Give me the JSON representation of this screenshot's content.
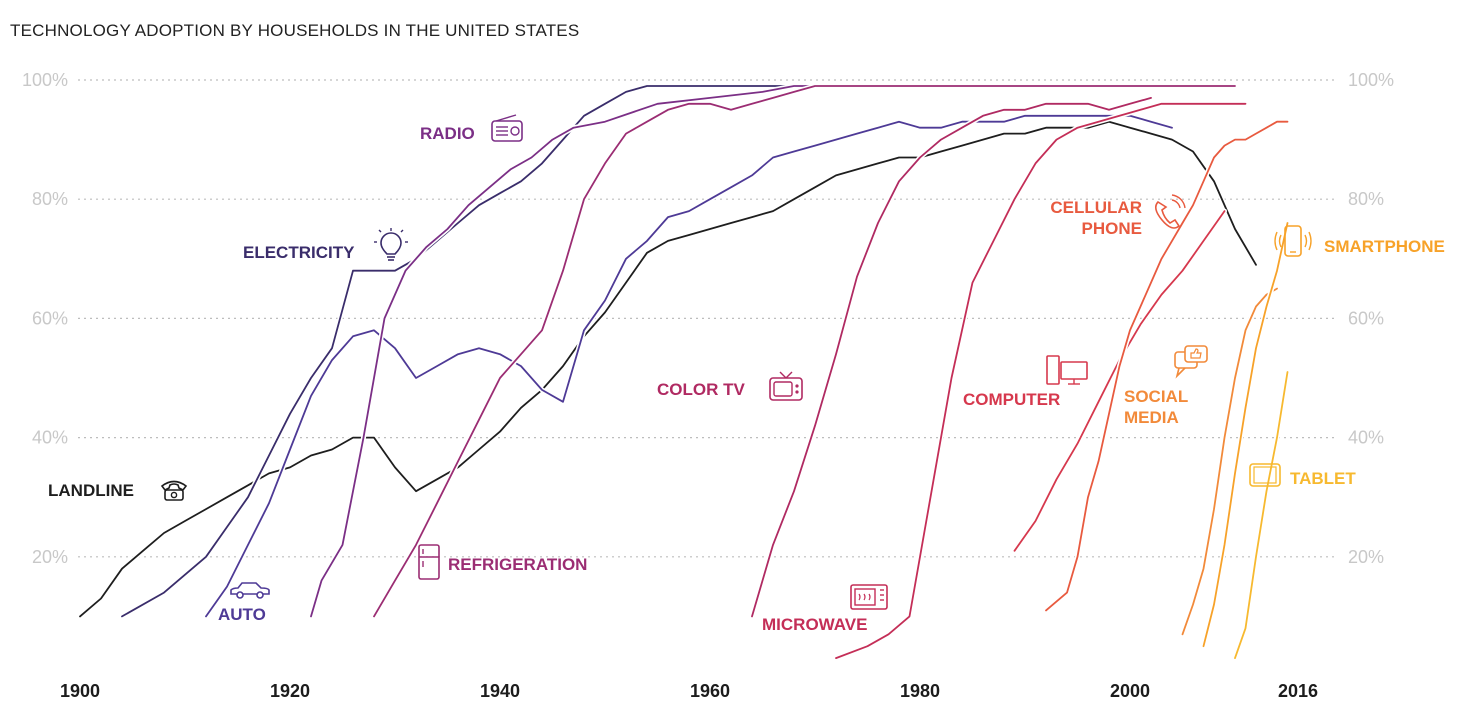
{
  "title": "TECHNOLOGY ADOPTION BY HOUSEHOLDS IN THE UNITED STATES",
  "chart_data": {
    "type": "line",
    "title": "TECHNOLOGY ADOPTION BY HOUSEHOLDS IN THE UNITED STATES",
    "xlabel": "",
    "ylabel": "",
    "xlim": [
      1900,
      2019
    ],
    "ylim": [
      0,
      100
    ],
    "x_ticks": [
      "1900",
      "1920",
      "1940",
      "1960",
      "1980",
      "2000",
      "2016"
    ],
    "x_tick_values": [
      1900,
      1920,
      1940,
      1960,
      1980,
      2000,
      2016
    ],
    "y_ticks": [
      "20%",
      "40%",
      "60%",
      "80%",
      "100%"
    ],
    "y_tick_values": [
      20,
      40,
      60,
      80,
      100
    ],
    "grid": "horizontal dotted",
    "series": [
      {
        "name": "LANDLINE",
        "color": "#1e1e1e",
        "x": [
          1900,
          1902,
          1904,
          1906,
          1908,
          1910,
          1912,
          1914,
          1916,
          1918,
          1920,
          1922,
          1924,
          1926,
          1928,
          1930,
          1932,
          1934,
          1936,
          1938,
          1940,
          1942,
          1944,
          1946,
          1948,
          1950,
          1952,
          1954,
          1956,
          1958,
          1960,
          1962,
          1964,
          1966,
          1968,
          1970,
          1972,
          1974,
          1976,
          1978,
          1980,
          1982,
          1984,
          1986,
          1988,
          1990,
          1992,
          1994,
          1996,
          1998,
          2000,
          2002,
          2004,
          2006,
          2008,
          2010,
          2012
        ],
        "y": [
          10,
          13,
          18,
          21,
          24,
          26,
          28,
          30,
          32,
          34,
          35,
          37,
          38,
          40,
          40,
          35,
          31,
          33,
          35,
          38,
          41,
          45,
          48,
          52,
          57,
          61,
          66,
          71,
          73,
          74,
          75,
          76,
          77,
          78,
          80,
          82,
          84,
          85,
          86,
          87,
          87,
          88,
          89,
          90,
          91,
          91,
          92,
          92,
          92,
          93,
          92,
          91,
          90,
          88,
          83,
          75,
          69
        ]
      },
      {
        "name": "ELECTRICITY",
        "color": "#3a2d6b",
        "x": [
          1904,
          1908,
          1910,
          1912,
          1914,
          1916,
          1918,
          1920,
          1922,
          1924,
          1926,
          1928,
          1930,
          1932,
          1934,
          1936,
          1938,
          1940,
          1942,
          1944,
          1946,
          1948,
          1950,
          1952,
          1954,
          1956,
          1960,
          1970,
          1980,
          1990,
          2000,
          2010
        ],
        "y": [
          10,
          14,
          17,
          20,
          25,
          30,
          37,
          44,
          50,
          55,
          68,
          68,
          68,
          70,
          73,
          76,
          79,
          81,
          83,
          86,
          90,
          94,
          96,
          98,
          99,
          99,
          99,
          99,
          99,
          99,
          99,
          99
        ]
      },
      {
        "name": "AUTO",
        "color": "#4e3a96",
        "x": [
          1912,
          1914,
          1916,
          1918,
          1920,
          1922,
          1924,
          1926,
          1928,
          1930,
          1932,
          1934,
          1936,
          1938,
          1940,
          1942,
          1944,
          1946,
          1948,
          1950,
          1952,
          1954,
          1956,
          1958,
          1960,
          1962,
          1964,
          1966,
          1968,
          1970,
          1972,
          1974,
          1976,
          1978,
          1980,
          1982,
          1984,
          1986,
          1988,
          1990,
          1992,
          1994,
          1996,
          1998,
          2000,
          2002,
          2004
        ],
        "y": [
          10,
          15,
          22,
          29,
          38,
          47,
          53,
          57,
          58,
          55,
          50,
          52,
          54,
          55,
          54,
          52,
          48,
          46,
          58,
          63,
          70,
          73,
          77,
          78,
          80,
          82,
          84,
          87,
          88,
          89,
          90,
          91,
          92,
          93,
          92,
          92,
          93,
          93,
          93,
          94,
          94,
          94,
          94,
          94,
          94,
          93,
          92
        ]
      },
      {
        "name": "RADIO",
        "color": "#7b2f86",
        "x": [
          1922,
          1923,
          1925,
          1927,
          1929,
          1931,
          1933,
          1935,
          1937,
          1939,
          1941,
          1943,
          1945,
          1947,
          1950,
          1955,
          1960,
          1965,
          1968,
          1975,
          2000,
          2010
        ],
        "y": [
          10,
          16,
          22,
          40,
          60,
          68,
          72,
          75,
          79,
          82,
          85,
          87,
          90,
          92,
          93,
          96,
          97,
          98,
          99,
          99,
          99,
          99
        ]
      },
      {
        "name": "REFRIGERATION",
        "color": "#9b2d73",
        "x": [
          1928,
          1930,
          1932,
          1934,
          1936,
          1938,
          1940,
          1942,
          1944,
          1946,
          1948,
          1950,
          1952,
          1954,
          1956,
          1958,
          1960,
          1962,
          1964,
          1966,
          1968,
          1970,
          1980,
          2000,
          2010
        ],
        "y": [
          10,
          16,
          22,
          29,
          36,
          43,
          50,
          54,
          58,
          68,
          80,
          86,
          91,
          93,
          95,
          96,
          96,
          95,
          96,
          97,
          98,
          99,
          99,
          99,
          99
        ]
      },
      {
        "name": "COLOR TV",
        "color": "#b02a62",
        "x": [
          1964,
          1966,
          1968,
          1970,
          1972,
          1974,
          1976,
          1978,
          1980,
          1982,
          1984,
          1986,
          1988,
          1990,
          1992,
          1994,
          1996,
          1998,
          2000,
          2002
        ],
        "y": [
          10,
          22,
          31,
          42,
          54,
          67,
          76,
          83,
          87,
          90,
          92,
          94,
          95,
          95,
          96,
          96,
          96,
          95,
          96,
          97
        ]
      },
      {
        "name": "MICROWAVE",
        "color": "#c42e57",
        "x": [
          1972,
          1975,
          1977,
          1979,
          1981,
          1983,
          1985,
          1987,
          1989,
          1991,
          1993,
          1995,
          1997,
          1999,
          2001,
          2003,
          2005,
          2007,
          2009,
          2011
        ],
        "y": [
          3,
          5,
          7,
          10,
          30,
          50,
          66,
          73,
          80,
          86,
          90,
          92,
          93,
          94,
          95,
          96,
          96,
          96,
          96,
          96
        ]
      },
      {
        "name": "COMPUTER",
        "color": "#d6384d",
        "x": [
          1989,
          1991,
          1993,
          1995,
          1997,
          1999,
          2001,
          2003,
          2005,
          2007,
          2009
        ],
        "y": [
          21,
          26,
          33,
          39,
          46,
          53,
          59,
          64,
          68,
          73,
          78
        ]
      },
      {
        "name": "CELLULAR PHONE",
        "color": "#e85a3f",
        "x": [
          1992,
          1994,
          1995,
          1996,
          1997,
          1998,
          1999,
          2000,
          2001,
          2002,
          2003,
          2004,
          2005,
          2006,
          2007,
          2008,
          2009,
          2010,
          2011,
          2012,
          2013,
          2014,
          2015
        ],
        "y": [
          11,
          14,
          20,
          30,
          36,
          44,
          52,
          58,
          62,
          66,
          70,
          73,
          76,
          79,
          83,
          87,
          89,
          90,
          90,
          91,
          92,
          93,
          93
        ]
      },
      {
        "name": "SOCIAL MEDIA",
        "color": "#f28a3a",
        "x": [
          2005,
          2006,
          2007,
          2008,
          2009,
          2010,
          2011,
          2012,
          2013,
          2014
        ],
        "y": [
          7,
          12,
          18,
          28,
          40,
          50,
          58,
          62,
          64,
          65
        ]
      },
      {
        "name": "SMARTPHONE",
        "color": "#f7a229",
        "x": [
          2007,
          2008,
          2009,
          2010,
          2011,
          2012,
          2013,
          2014,
          2015
        ],
        "y": [
          5,
          12,
          22,
          34,
          45,
          55,
          62,
          68,
          76
        ]
      },
      {
        "name": "TABLET",
        "color": "#f7b92f",
        "x": [
          2010,
          2011,
          2012,
          2013,
          2014,
          2015
        ],
        "y": [
          3,
          8,
          20,
          31,
          40,
          51
        ]
      }
    ],
    "labels": [
      {
        "series": "LANDLINE",
        "text": "LANDLINE",
        "icon": "telephone-icon"
      },
      {
        "series": "ELECTRICITY",
        "text": "ELECTRICITY",
        "icon": "lightbulb-icon"
      },
      {
        "series": "AUTO",
        "text": "AUTO",
        "icon": "car-icon"
      },
      {
        "series": "RADIO",
        "text": "RADIO",
        "icon": "radio-icon"
      },
      {
        "series": "REFRIGERATION",
        "text": "REFRIGERATION",
        "icon": "refrigerator-icon"
      },
      {
        "series": "COLOR TV",
        "text": "COLOR TV",
        "icon": "tv-icon"
      },
      {
        "series": "MICROWAVE",
        "text": "MICROWAVE",
        "icon": "microwave-icon"
      },
      {
        "series": "COMPUTER",
        "text": "COMPUTER",
        "icon": "computer-icon"
      },
      {
        "series": "CELLULAR PHONE",
        "text": "CELLULAR PHONE",
        "icon": "cellphone-icon"
      },
      {
        "series": "SOCIAL MEDIA",
        "text": "SOCIAL MEDIA",
        "icon": "social-media-icon"
      },
      {
        "series": "SMARTPHONE",
        "text": "SMARTPHONE",
        "icon": "smartphone-icon"
      },
      {
        "series": "TABLET",
        "text": "TABLET",
        "icon": "tablet-icon"
      }
    ]
  }
}
